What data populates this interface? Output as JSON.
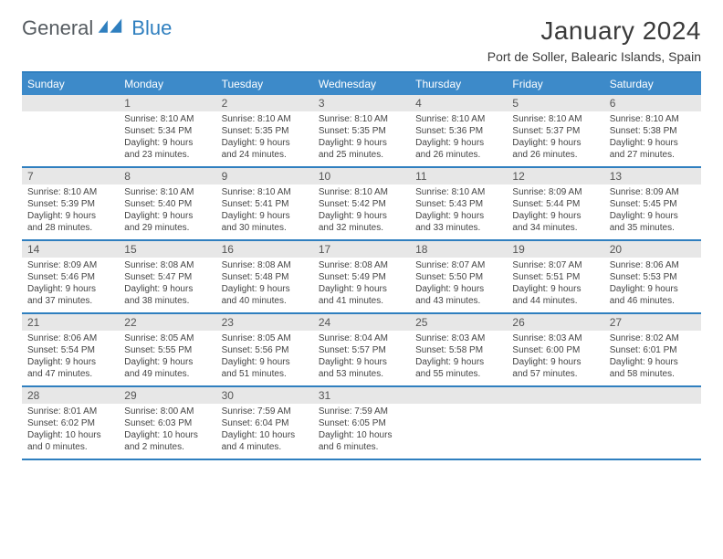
{
  "logo": {
    "text1": "General",
    "text2": "Blue"
  },
  "title": "January 2024",
  "location": "Port de Soller, Balearic Islands, Spain",
  "colors": {
    "brand_blue": "#2f7fbf",
    "header_blue": "#3d8ac9",
    "daynum_bg": "#e7e7e7",
    "text": "#444444",
    "title_text": "#3a3a3a"
  },
  "days_of_week": [
    "Sunday",
    "Monday",
    "Tuesday",
    "Wednesday",
    "Thursday",
    "Friday",
    "Saturday"
  ],
  "weeks": [
    [
      {
        "n": "",
        "lines": [
          "",
          "",
          "",
          ""
        ]
      },
      {
        "n": "1",
        "lines": [
          "Sunrise: 8:10 AM",
          "Sunset: 5:34 PM",
          "Daylight: 9 hours",
          "and 23 minutes."
        ]
      },
      {
        "n": "2",
        "lines": [
          "Sunrise: 8:10 AM",
          "Sunset: 5:35 PM",
          "Daylight: 9 hours",
          "and 24 minutes."
        ]
      },
      {
        "n": "3",
        "lines": [
          "Sunrise: 8:10 AM",
          "Sunset: 5:35 PM",
          "Daylight: 9 hours",
          "and 25 minutes."
        ]
      },
      {
        "n": "4",
        "lines": [
          "Sunrise: 8:10 AM",
          "Sunset: 5:36 PM",
          "Daylight: 9 hours",
          "and 26 minutes."
        ]
      },
      {
        "n": "5",
        "lines": [
          "Sunrise: 8:10 AM",
          "Sunset: 5:37 PM",
          "Daylight: 9 hours",
          "and 26 minutes."
        ]
      },
      {
        "n": "6",
        "lines": [
          "Sunrise: 8:10 AM",
          "Sunset: 5:38 PM",
          "Daylight: 9 hours",
          "and 27 minutes."
        ]
      }
    ],
    [
      {
        "n": "7",
        "lines": [
          "Sunrise: 8:10 AM",
          "Sunset: 5:39 PM",
          "Daylight: 9 hours",
          "and 28 minutes."
        ]
      },
      {
        "n": "8",
        "lines": [
          "Sunrise: 8:10 AM",
          "Sunset: 5:40 PM",
          "Daylight: 9 hours",
          "and 29 minutes."
        ]
      },
      {
        "n": "9",
        "lines": [
          "Sunrise: 8:10 AM",
          "Sunset: 5:41 PM",
          "Daylight: 9 hours",
          "and 30 minutes."
        ]
      },
      {
        "n": "10",
        "lines": [
          "Sunrise: 8:10 AM",
          "Sunset: 5:42 PM",
          "Daylight: 9 hours",
          "and 32 minutes."
        ]
      },
      {
        "n": "11",
        "lines": [
          "Sunrise: 8:10 AM",
          "Sunset: 5:43 PM",
          "Daylight: 9 hours",
          "and 33 minutes."
        ]
      },
      {
        "n": "12",
        "lines": [
          "Sunrise: 8:09 AM",
          "Sunset: 5:44 PM",
          "Daylight: 9 hours",
          "and 34 minutes."
        ]
      },
      {
        "n": "13",
        "lines": [
          "Sunrise: 8:09 AM",
          "Sunset: 5:45 PM",
          "Daylight: 9 hours",
          "and 35 minutes."
        ]
      }
    ],
    [
      {
        "n": "14",
        "lines": [
          "Sunrise: 8:09 AM",
          "Sunset: 5:46 PM",
          "Daylight: 9 hours",
          "and 37 minutes."
        ]
      },
      {
        "n": "15",
        "lines": [
          "Sunrise: 8:08 AM",
          "Sunset: 5:47 PM",
          "Daylight: 9 hours",
          "and 38 minutes."
        ]
      },
      {
        "n": "16",
        "lines": [
          "Sunrise: 8:08 AM",
          "Sunset: 5:48 PM",
          "Daylight: 9 hours",
          "and 40 minutes."
        ]
      },
      {
        "n": "17",
        "lines": [
          "Sunrise: 8:08 AM",
          "Sunset: 5:49 PM",
          "Daylight: 9 hours",
          "and 41 minutes."
        ]
      },
      {
        "n": "18",
        "lines": [
          "Sunrise: 8:07 AM",
          "Sunset: 5:50 PM",
          "Daylight: 9 hours",
          "and 43 minutes."
        ]
      },
      {
        "n": "19",
        "lines": [
          "Sunrise: 8:07 AM",
          "Sunset: 5:51 PM",
          "Daylight: 9 hours",
          "and 44 minutes."
        ]
      },
      {
        "n": "20",
        "lines": [
          "Sunrise: 8:06 AM",
          "Sunset: 5:53 PM",
          "Daylight: 9 hours",
          "and 46 minutes."
        ]
      }
    ],
    [
      {
        "n": "21",
        "lines": [
          "Sunrise: 8:06 AM",
          "Sunset: 5:54 PM",
          "Daylight: 9 hours",
          "and 47 minutes."
        ]
      },
      {
        "n": "22",
        "lines": [
          "Sunrise: 8:05 AM",
          "Sunset: 5:55 PM",
          "Daylight: 9 hours",
          "and 49 minutes."
        ]
      },
      {
        "n": "23",
        "lines": [
          "Sunrise: 8:05 AM",
          "Sunset: 5:56 PM",
          "Daylight: 9 hours",
          "and 51 minutes."
        ]
      },
      {
        "n": "24",
        "lines": [
          "Sunrise: 8:04 AM",
          "Sunset: 5:57 PM",
          "Daylight: 9 hours",
          "and 53 minutes."
        ]
      },
      {
        "n": "25",
        "lines": [
          "Sunrise: 8:03 AM",
          "Sunset: 5:58 PM",
          "Daylight: 9 hours",
          "and 55 minutes."
        ]
      },
      {
        "n": "26",
        "lines": [
          "Sunrise: 8:03 AM",
          "Sunset: 6:00 PM",
          "Daylight: 9 hours",
          "and 57 minutes."
        ]
      },
      {
        "n": "27",
        "lines": [
          "Sunrise: 8:02 AM",
          "Sunset: 6:01 PM",
          "Daylight: 9 hours",
          "and 58 minutes."
        ]
      }
    ],
    [
      {
        "n": "28",
        "lines": [
          "Sunrise: 8:01 AM",
          "Sunset: 6:02 PM",
          "Daylight: 10 hours",
          "and 0 minutes."
        ]
      },
      {
        "n": "29",
        "lines": [
          "Sunrise: 8:00 AM",
          "Sunset: 6:03 PM",
          "Daylight: 10 hours",
          "and 2 minutes."
        ]
      },
      {
        "n": "30",
        "lines": [
          "Sunrise: 7:59 AM",
          "Sunset: 6:04 PM",
          "Daylight: 10 hours",
          "and 4 minutes."
        ]
      },
      {
        "n": "31",
        "lines": [
          "Sunrise: 7:59 AM",
          "Sunset: 6:05 PM",
          "Daylight: 10 hours",
          "and 6 minutes."
        ]
      },
      {
        "n": "",
        "lines": [
          "",
          "",
          "",
          ""
        ]
      },
      {
        "n": "",
        "lines": [
          "",
          "",
          "",
          ""
        ]
      },
      {
        "n": "",
        "lines": [
          "",
          "",
          "",
          ""
        ]
      }
    ]
  ]
}
